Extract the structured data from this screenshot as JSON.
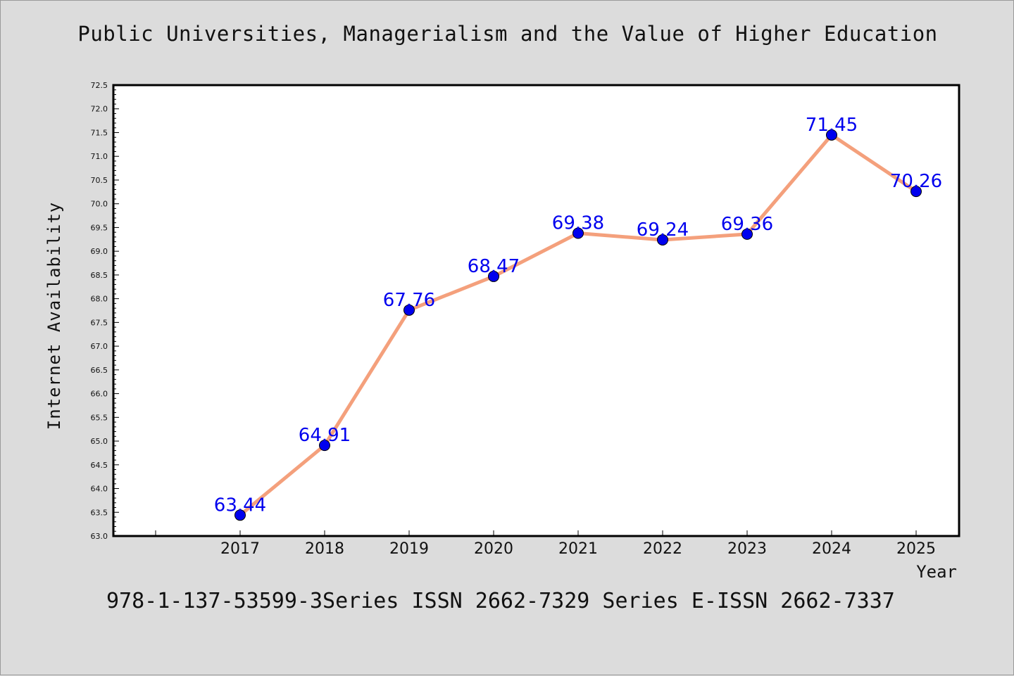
{
  "chart_data": {
    "type": "line",
    "title": "Public Universities, Managerialism and the Value of Higher Education",
    "xlabel": "Year",
    "ylabel": "Internet Availability",
    "categories": [
      "2017",
      "2018",
      "2019",
      "2020",
      "2021",
      "2022",
      "2023",
      "2024",
      "2025"
    ],
    "values": [
      63.44,
      64.91,
      67.76,
      68.47,
      69.38,
      69.24,
      69.36,
      71.45,
      70.26
    ],
    "data_labels": [
      "63.44",
      "64.91",
      "67.76",
      "68.47",
      "69.38",
      "69.24",
      "69.36",
      "71.45",
      "70.26"
    ],
    "ylim": [
      63.0,
      72.5
    ],
    "yticks": [
      "63.0",
      "63.5",
      "64.0",
      "64.5",
      "65.0",
      "65.5",
      "66.0",
      "66.5",
      "67.0",
      "67.5",
      "68.0",
      "68.5",
      "69.0",
      "69.5",
      "70.0",
      "70.5",
      "71.0",
      "71.5",
      "72.0",
      "72.5"
    ],
    "grid": false,
    "line_color": "#f4a07c",
    "marker_color": "#0000ee",
    "label_color": "#0000ee"
  },
  "footer": "978-1-137-53599-3Series ISSN 2662-7329 Series E-ISSN 2662-7337"
}
